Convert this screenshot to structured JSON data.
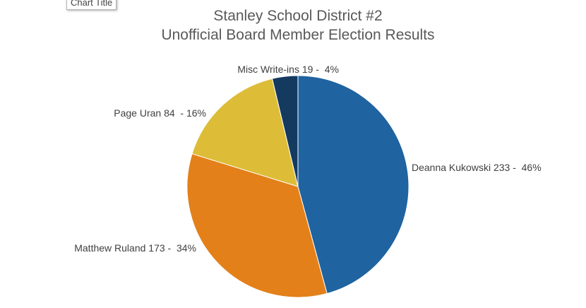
{
  "tooltip": {
    "label": "Chart Title"
  },
  "chart_data": {
    "type": "pie",
    "title_lines": [
      "Stanley School District #2",
      "Unofficial Board Member Election Results"
    ],
    "categories": [
      "Deanna Kukowski",
      "Matthew Ruland",
      "Page Uran",
      "Misc Write-ins"
    ],
    "values": [
      233,
      173,
      84,
      19
    ],
    "percents": [
      46,
      34,
      16,
      4
    ],
    "data_labels": [
      "Deanna Kukowski 233 -  46%",
      "Matthew Ruland 173 -  34%",
      "Page Uran 84  - 16%",
      "Misc Write-ins 19 -  4%"
    ],
    "colors": [
      "#1f63a0",
      "#e38019",
      "#ddbd38",
      "#153a5f"
    ],
    "start_angle": "top",
    "direction": "clockwise"
  }
}
